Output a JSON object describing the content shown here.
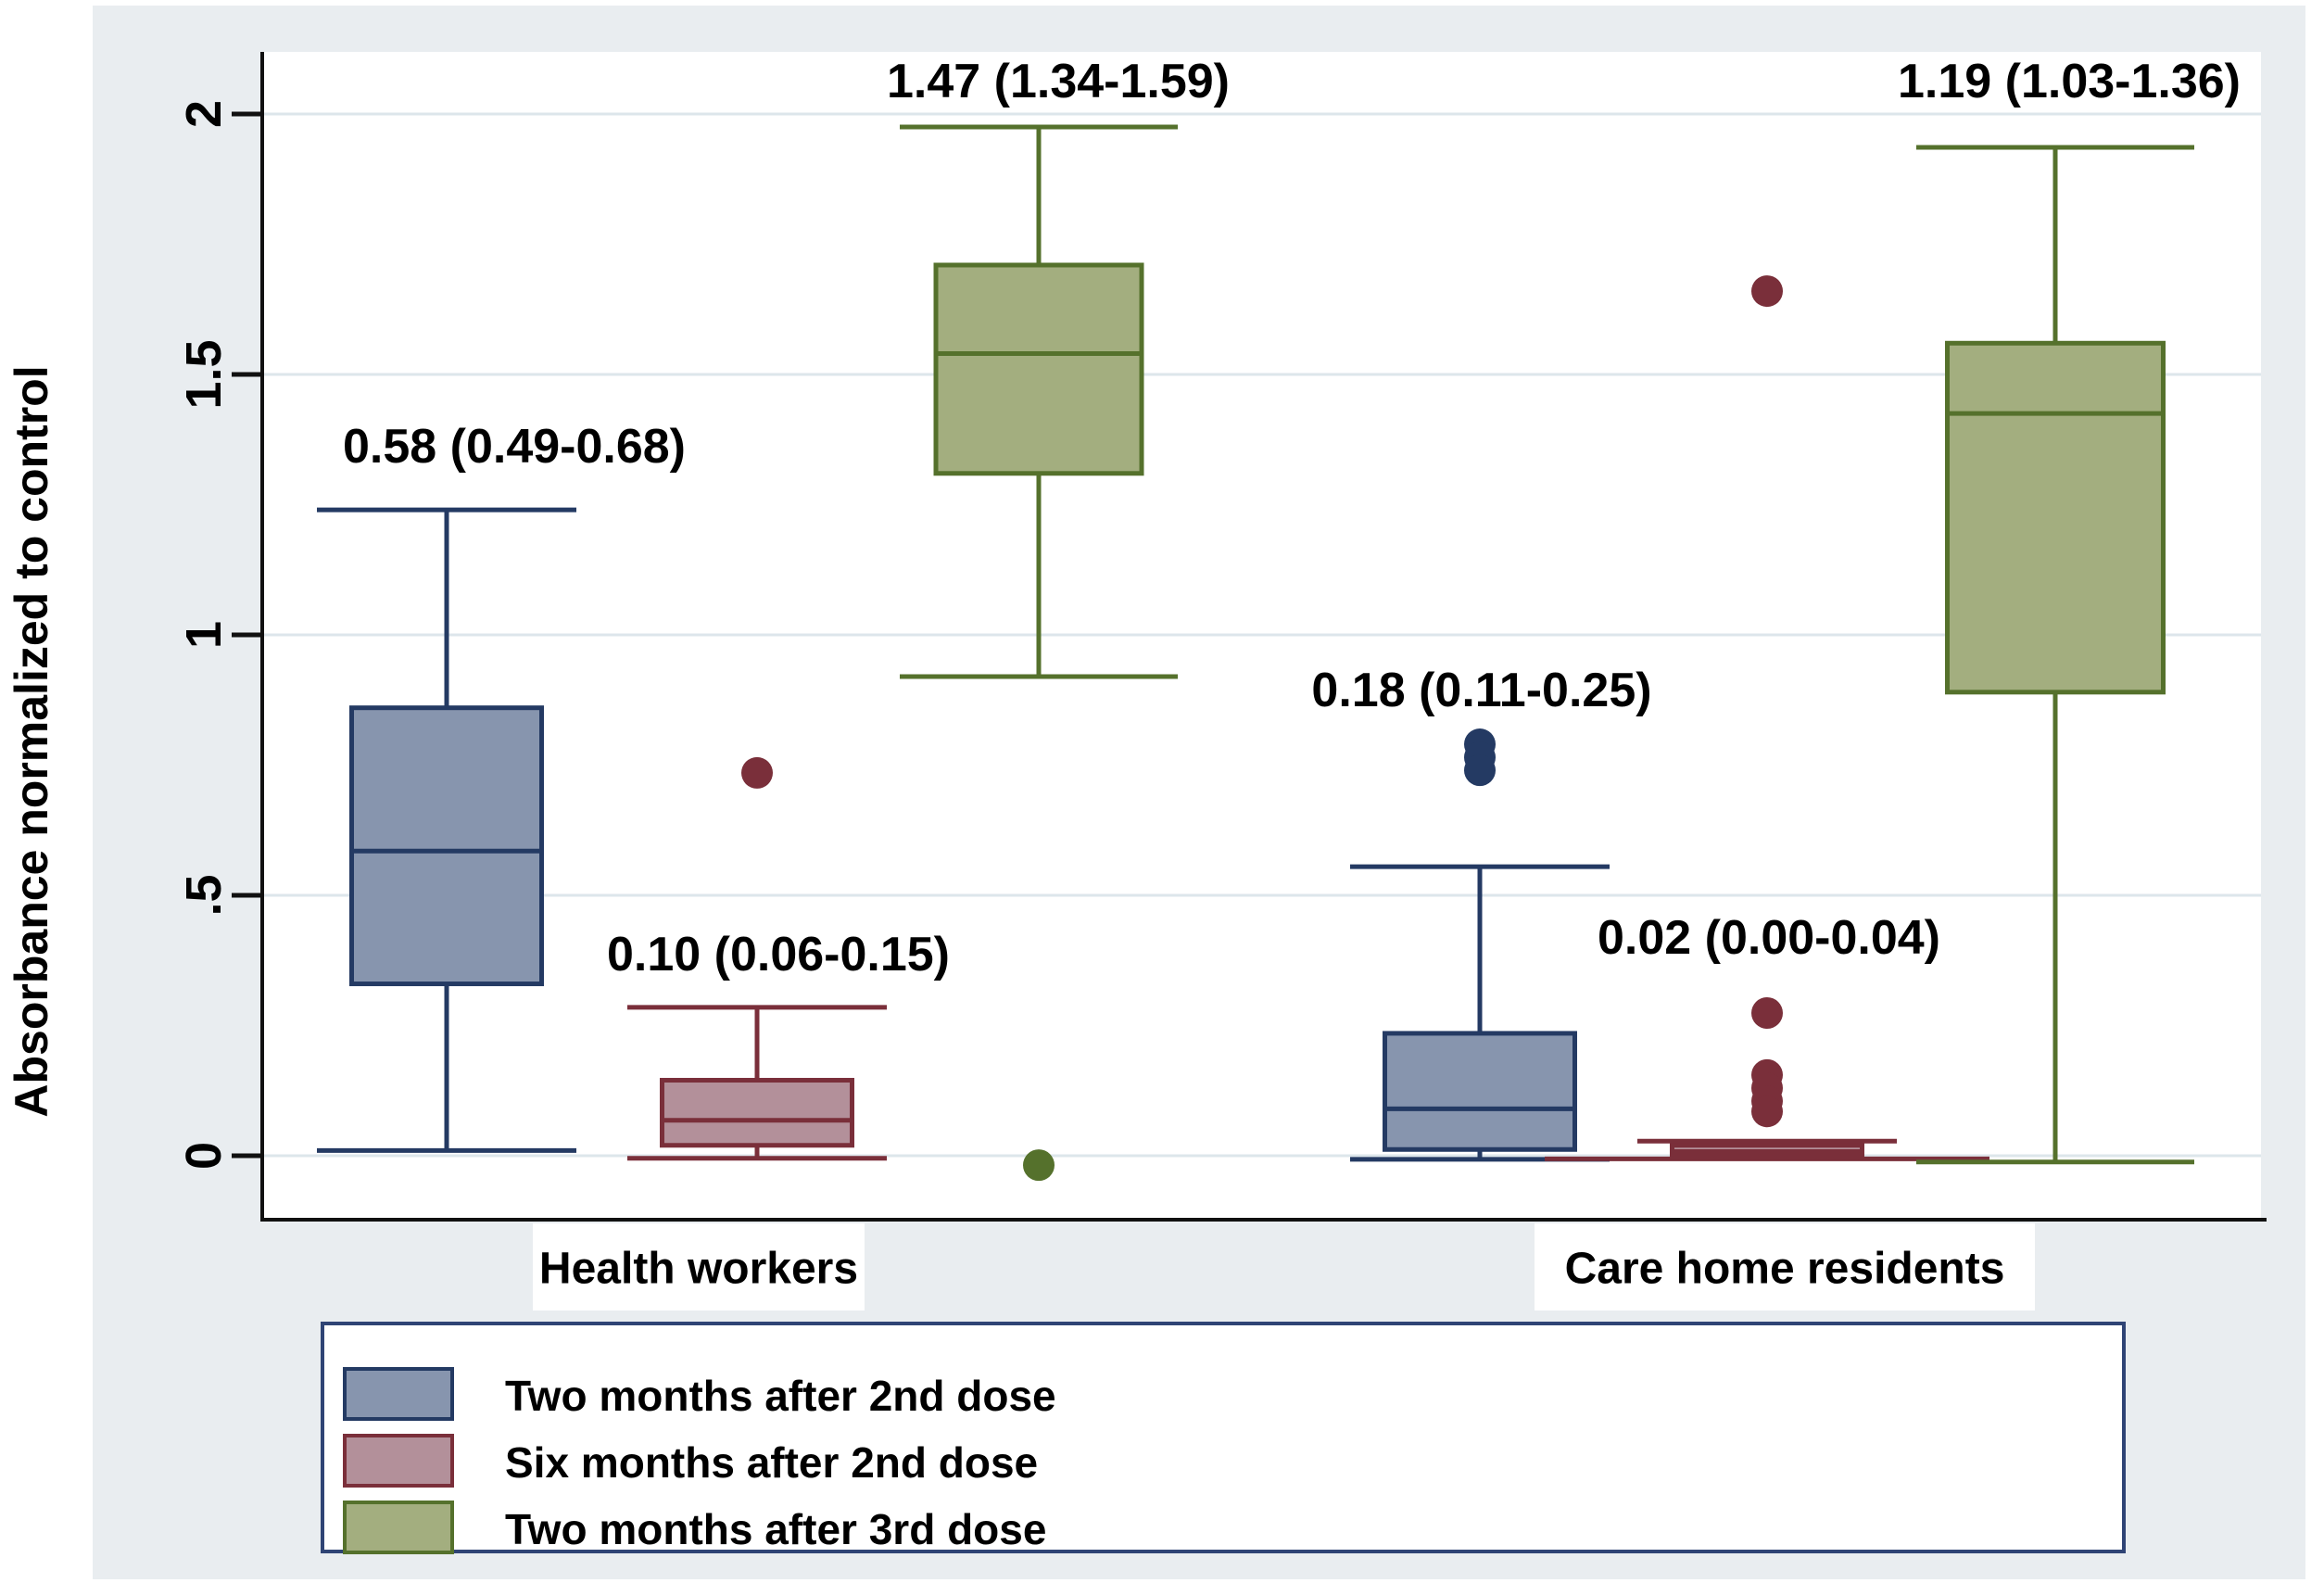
{
  "figure": {
    "ylabel": "Absorbance normalized to control",
    "ytick_labels": [
      "0",
      ".5",
      "1",
      "1.5",
      "2"
    ],
    "ytick_values": [
      0,
      0.5,
      1,
      1.5,
      2
    ],
    "group_labels": [
      "Health workers",
      "Care home residents"
    ],
    "legend_items": [
      {
        "label": "Two months after 2nd dose",
        "fill": "#8795ae",
        "border": "#243a63"
      },
      {
        "label": "Six months after 2nd dose",
        "fill": "#b3909a",
        "border": "#7a2f3a"
      },
      {
        "label": "Two months after 3rd dose",
        "fill": "#a3ae7f",
        "border": "#55712c"
      }
    ],
    "colors": {
      "panel_bg": "#e9edf0",
      "plot_bg": "#ffffff",
      "gridline": "#dde6eb",
      "axis": "#111111",
      "legend_border": "#2f4475",
      "text": "#000000"
    }
  },
  "chart_data": {
    "type": "boxplot",
    "title": "",
    "ylabel": "Absorbance normalized to control",
    "ylim": [
      -0.15,
      2.12
    ],
    "grid": true,
    "legend_position": "bottom-left",
    "groups": [
      "Health workers",
      "Care home residents"
    ],
    "series": [
      "Two months after 2nd dose",
      "Six months after 2nd dose",
      "Two months after 3rd dose"
    ],
    "boxes": [
      {
        "group": "Health workers",
        "series": "Two months after 2nd dose",
        "annotation": "0.58 (0.49-0.68)",
        "whisker_low": 0.01,
        "q1": 0.33,
        "median": 0.585,
        "q3": 0.86,
        "whisker_high": 1.24,
        "outliers": []
      },
      {
        "group": "Health workers",
        "series": "Six months after 2nd dose",
        "annotation": "0.10 (0.06-0.15)",
        "whisker_low": -0.005,
        "q1": 0.02,
        "median": 0.068,
        "q3": 0.145,
        "whisker_high": 0.285,
        "outliers": [
          0.735
        ]
      },
      {
        "group": "Health workers",
        "series": "Two months after 3rd dose",
        "annotation": "1.47 (1.34-1.59)",
        "whisker_low": 0.92,
        "q1": 1.31,
        "median": 1.54,
        "q3": 1.71,
        "whisker_high": 1.975,
        "outliers": [
          -0.018
        ]
      },
      {
        "group": "Care home residents",
        "series": "Two months after 2nd dose",
        "annotation": "0.18 (0.11-0.25)",
        "whisker_low": -0.007,
        "q1": 0.012,
        "median": 0.09,
        "q3": 0.235,
        "whisker_high": 0.555,
        "outliers": [
          0.79,
          0.765,
          0.74
        ]
      },
      {
        "group": "Care home residents",
        "series": "Six months after 2nd dose",
        "annotation": "0.02 (0.00-0.04)",
        "whisker_low": -0.006,
        "q1": 0.0,
        "median": 0.008,
        "q3": 0.02,
        "whisker_high": 0.028,
        "outliers": [
          1.66,
          0.274,
          0.155,
          0.13,
          0.105,
          0.085
        ]
      },
      {
        "group": "Care home residents",
        "series": "Two months after 3rd dose",
        "annotation": "1.19 (1.03-1.36)",
        "whisker_low": -0.012,
        "q1": 0.89,
        "median": 1.425,
        "q3": 1.56,
        "whisker_high": 1.936,
        "outliers": []
      }
    ]
  }
}
